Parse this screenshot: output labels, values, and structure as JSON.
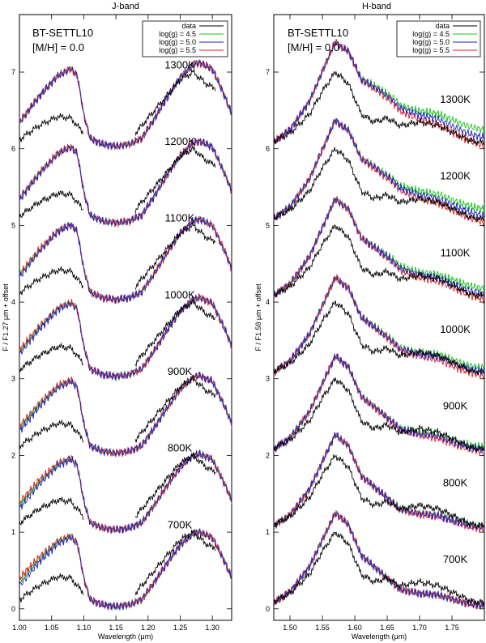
{
  "chart_data": [
    {
      "type": "line",
      "title": "J-band",
      "model": {
        "name": "BT-SETTL10",
        "metallicity": "[M/H] = 0.0"
      },
      "xlabel": "Wavelength (μm)",
      "ylabel": "F / F1.27 μm + offset",
      "xlim": [
        1.0,
        1.33
      ],
      "ylim": [
        -0.15,
        7.75
      ],
      "xticks": [
        "1.00",
        "1.05",
        "1.10",
        "1.15",
        "1.20",
        "1.25",
        "1.30"
      ],
      "yticks": [
        "0",
        "1",
        "2",
        "3",
        "4",
        "5",
        "6",
        "7"
      ],
      "legend": {
        "position": "top-right",
        "entries": [
          {
            "label": "data",
            "color": "#000000"
          },
          {
            "label": "log(g) = 4.5",
            "color": "#19c219"
          },
          {
            "label": "log(g) = 5.0",
            "color": "#2020c8"
          },
          {
            "label": "log(g) = 5.5",
            "color": "#e02020"
          }
        ]
      },
      "temperatures": [
        {
          "label": "700K",
          "offset": 0
        },
        {
          "label": "800K",
          "offset": 1
        },
        {
          "label": "900K",
          "offset": 2
        },
        {
          "label": "1000K",
          "offset": 3
        },
        {
          "label": "1100K",
          "offset": 4
        },
        {
          "label": "1200K",
          "offset": 5
        },
        {
          "label": "1300K",
          "offset": 6
        }
      ],
      "model_shape": {
        "x": [
          1.0,
          1.03,
          1.06,
          1.08,
          1.09,
          1.1,
          1.11,
          1.13,
          1.15,
          1.17,
          1.19,
          1.21,
          1.23,
          1.25,
          1.27,
          1.28,
          1.3,
          1.32,
          1.33
        ],
        "y": [
          0.3,
          0.6,
          0.85,
          0.93,
          0.85,
          0.4,
          0.12,
          0.05,
          0.03,
          0.05,
          0.12,
          0.35,
          0.6,
          0.83,
          0.98,
          1.0,
          0.93,
          0.6,
          0.4
        ]
      },
      "data_shape": {
        "x": [
          1.0,
          1.03,
          1.06,
          1.08,
          1.1,
          1.18,
          1.2,
          1.23,
          1.25,
          1.27,
          1.29,
          1.3
        ],
        "y": [
          0.12,
          0.3,
          0.42,
          0.4,
          0.2,
          0.2,
          0.4,
          0.7,
          0.9,
          1.0,
          0.85,
          0.8
        ]
      }
    },
    {
      "type": "line",
      "title": "H-band",
      "model": {
        "name": "BT-SETTL10",
        "metallicity": "[M/H] = 0.0"
      },
      "xlabel": "Wavelength (μm)",
      "ylabel": "F / F1.58 μm + offset",
      "xlim": [
        1.475,
        1.8
      ],
      "ylim": [
        -0.15,
        7.75
      ],
      "xticks": [
        "1.50",
        "1.55",
        "1.60",
        "1.65",
        "1.70",
        "1.75"
      ],
      "yticks": [
        "0",
        "1",
        "2",
        "3",
        "4",
        "5",
        "6",
        "7"
      ],
      "legend": {
        "position": "top-right",
        "entries": [
          {
            "label": "data",
            "color": "#000000"
          },
          {
            "label": "log(g) = 4.5",
            "color": "#19c219"
          },
          {
            "label": "log(g) = 5.0",
            "color": "#2020c8"
          },
          {
            "label": "log(g) = 5.5",
            "color": "#e02020"
          }
        ]
      },
      "temperatures": [
        {
          "label": "700K",
          "offset": 0
        },
        {
          "label": "800K",
          "offset": 1
        },
        {
          "label": "900K",
          "offset": 2
        },
        {
          "label": "1000K",
          "offset": 3
        },
        {
          "label": "1100K",
          "offset": 4
        },
        {
          "label": "1200K",
          "offset": 5
        },
        {
          "label": "1300K",
          "offset": 6
        }
      ],
      "model_shape": {
        "x": [
          1.475,
          1.5,
          1.53,
          1.55,
          1.57,
          1.59,
          1.61,
          1.63,
          1.65,
          1.67,
          1.7,
          1.73,
          1.76,
          1.78,
          1.8
        ],
        "y": [
          0.08,
          0.22,
          0.55,
          0.9,
          1.25,
          1.1,
          0.7,
          0.55,
          0.4,
          0.25,
          0.2,
          0.18,
          0.1,
          0.06,
          0.04
        ]
      },
      "data_shape": {
        "x": [
          1.475,
          1.5,
          1.53,
          1.55,
          1.57,
          1.59,
          1.61,
          1.63,
          1.65,
          1.67,
          1.7,
          1.73,
          1.76,
          1.78,
          1.8
        ],
        "y": [
          0.1,
          0.2,
          0.45,
          0.75,
          1.0,
          0.85,
          0.45,
          0.35,
          0.4,
          0.3,
          0.35,
          0.3,
          0.18,
          0.1,
          0.08
        ]
      }
    }
  ]
}
